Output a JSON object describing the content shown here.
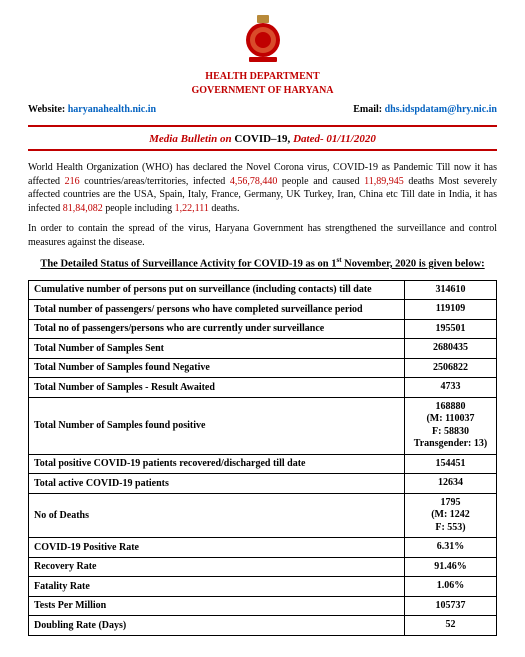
{
  "header": {
    "dept": "HEALTH DEPARTMENT",
    "gov": "GOVERNMENT OF HARYANA",
    "website_lbl": "Website: ",
    "website": "haryanahealth.nic.in",
    "email_lbl": "Email: ",
    "email": "dhs.idspdatam@hry.nic.in"
  },
  "bulletin": {
    "prefix": "Media Bulletin on ",
    "mid": "COVID–19, ",
    "suffix": "Dated- 01/11/2020"
  },
  "para1": {
    "t1": "World Health Organization (WHO) has declared the Novel Corona virus, COVID-19 as Pandemic Till now it has affected ",
    "n1": "216",
    "t2": " countries/areas/territories, infected ",
    "n2": "4,56,78,440",
    "t3": " people and caused ",
    "n3": "11,89,945",
    "t4": " deaths Most severely affected countries are the USA, Spain, Italy, France, Germany, UK Turkey, Iran, China etc Till date in India, it has infected ",
    "n4": "81,84,082",
    "t5": " people including ",
    "n5": "1,22,111",
    "t6": " deaths."
  },
  "para2": "In order to contain the spread of the virus, Haryana Government has strengthened the surveillance and control measures against the disease.",
  "section_head": {
    "t1": "The Detailed Status of Surveillance Activity for COVID-19 as on 1",
    "sup": "st",
    "t2": " November, 2020 is given below:"
  },
  "rows": [
    {
      "label": "Cumulative number of persons put on surveillance (including contacts) till date",
      "value": "314610"
    },
    {
      "label": "Total number of passengers/ persons who have completed surveillance period",
      "value": "119109"
    },
    {
      "label": "Total no of passengers/persons who are currently under surveillance",
      "value": "195501"
    },
    {
      "label": "Total Number of Samples Sent",
      "value": "2680435"
    },
    {
      "label": "Total Number of Samples found Negative",
      "value": "2506822"
    },
    {
      "label": "Total Number of Samples - Result Awaited",
      "value": "4733"
    },
    {
      "label": "Total Number of Samples found positive",
      "value": "168880\n(M: 110037\nF: 58830\nTransgender: 13)"
    },
    {
      "label": "Total positive COVID-19 patients recovered/discharged till date",
      "value": "154451"
    },
    {
      "label": "Total active COVID-19 patients",
      "value": "12634"
    },
    {
      "label": "No of Deaths",
      "value": "1795\n(M: 1242\nF: 553)"
    },
    {
      "label": "COVID-19 Positive Rate",
      "value": "6.31%"
    },
    {
      "label": "Recovery Rate",
      "value": "91.46%"
    },
    {
      "label": "Fatality Rate",
      "value": "1.06%"
    },
    {
      "label": "Tests Per Million",
      "value": "105737"
    },
    {
      "label": "Doubling Rate (Days)",
      "value": "52"
    }
  ],
  "colors": {
    "accent": "#c00000",
    "link": "#0563c1"
  }
}
